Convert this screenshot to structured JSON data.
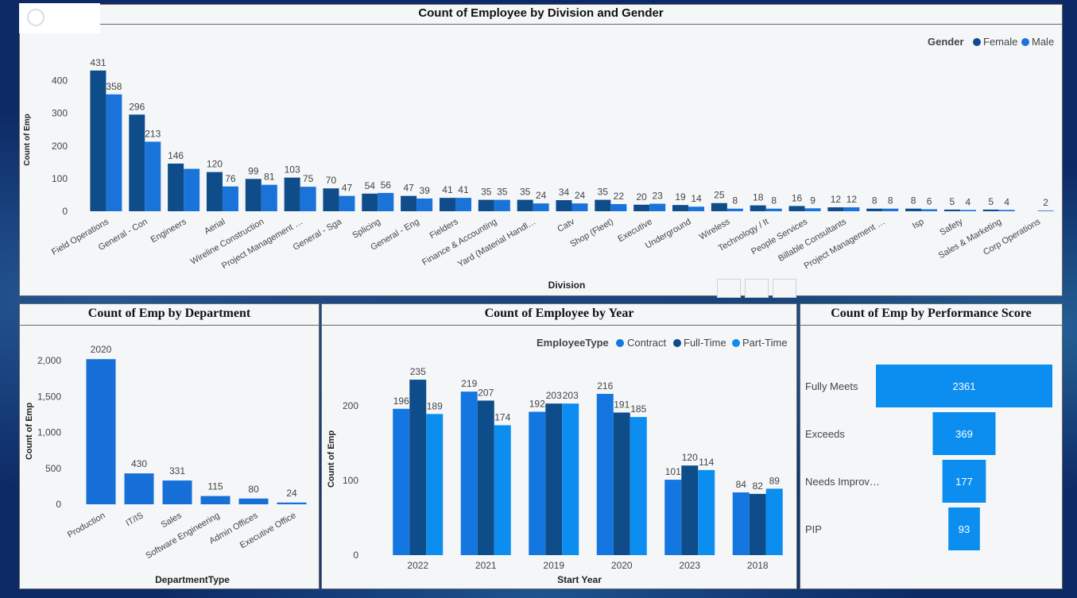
{
  "colors": {
    "female": "#0f4c8a",
    "male": "#1a73d9",
    "dept": "#1670d8",
    "contract": "#1476e0",
    "fulltime": "#0f4c8a",
    "parttime": "#0b8ef0",
    "funnel": "#0b8ef0"
  },
  "chart_data": [
    {
      "type": "bar",
      "title": "Count of Employee by Division and Gender",
      "xlabel": "Division",
      "ylabel": "Count of Emp",
      "ylim": [
        0,
        450
      ],
      "yticks": [
        0,
        100,
        200,
        300,
        400
      ],
      "legend": {
        "title": "Gender",
        "position": "top-right"
      },
      "categories": [
        "Field Operations",
        "General - Con",
        "Engineers",
        "Aerial",
        "Wireline Construction",
        "Project Management …",
        "General - Sga",
        "Splicing",
        "General - Eng",
        "Fielders",
        "Finance & Accounting",
        "Yard (Material Handl…",
        "Catv",
        "Shop (Fleet)",
        "Executive",
        "Underground",
        "Wireless",
        "Technology / It",
        "People Services",
        "Billable Consultants",
        "Project Management …",
        "Isp",
        "Safety",
        "Sales & Marketing",
        "Corp Operations"
      ],
      "series": [
        {
          "name": "Female",
          "values": [
            431,
            296,
            146,
            120,
            99,
            103,
            70,
            54,
            47,
            41,
            35,
            35,
            34,
            35,
            20,
            19,
            25,
            18,
            16,
            12,
            8,
            8,
            5,
            5,
            null
          ]
        },
        {
          "name": "Male",
          "values": [
            358,
            213,
            130,
            76,
            81,
            75,
            47,
            56,
            39,
            41,
            35,
            24,
            24,
            22,
            23,
            14,
            8,
            8,
            9,
            12,
            8,
            6,
            4,
            4,
            2
          ]
        }
      ],
      "data_labels": [
        [
          "431",
          "296",
          "146",
          "120",
          "99",
          "103",
          "70",
          "54",
          "47",
          "41",
          "35",
          "35",
          "34",
          "35",
          "20",
          "19",
          "25",
          "18",
          "16",
          "12",
          "8",
          "8",
          "5",
          "5",
          ""
        ],
        [
          "358",
          "213",
          "",
          "76",
          "81",
          "75",
          "47",
          "56",
          "39",
          "41",
          "35",
          "24",
          "24",
          "22",
          "23",
          "14",
          "8",
          "8",
          "9",
          "12",
          "8",
          "6",
          "4",
          "4",
          "2"
        ]
      ]
    },
    {
      "type": "bar",
      "title": "Count of Emp by Department",
      "xlabel": "DepartmentType",
      "ylabel": "Count of Emp",
      "ylim": [
        0,
        2100
      ],
      "yticks": [
        0,
        500,
        1000,
        1500,
        2000
      ],
      "ytick_labels": [
        "0",
        "500",
        "1,000",
        "1,500",
        "2,000"
      ],
      "categories": [
        "Production",
        "IT/IS",
        "Sales",
        "Software Engineering",
        "Admin Offices",
        "Executive Office"
      ],
      "values": [
        2020,
        430,
        331,
        115,
        80,
        24
      ]
    },
    {
      "type": "bar",
      "title": "Count of Employee by Year",
      "xlabel": "Start Year",
      "ylabel": "Count of Emp",
      "ylim": [
        0,
        245
      ],
      "yticks": [
        0,
        100,
        200
      ],
      "legend": {
        "title": "EmployeeType",
        "position": "top-right"
      },
      "categories": [
        "2022",
        "2021",
        "2019",
        "2020",
        "2023",
        "2018"
      ],
      "series": [
        {
          "name": "Contract",
          "values": [
            196,
            219,
            192,
            216,
            101,
            84
          ]
        },
        {
          "name": "Full-Time",
          "values": [
            235,
            207,
            203,
            191,
            120,
            82
          ]
        },
        {
          "name": "Part-Time",
          "values": [
            189,
            174,
            203,
            185,
            114,
            89
          ]
        }
      ]
    },
    {
      "type": "funnel",
      "title": "Count of Emp by Performance Score",
      "categories": [
        "Fully Meets",
        "Exceeds",
        "Needs Improv…",
        "PIP"
      ],
      "values": [
        2361,
        369,
        177,
        93
      ]
    }
  ]
}
